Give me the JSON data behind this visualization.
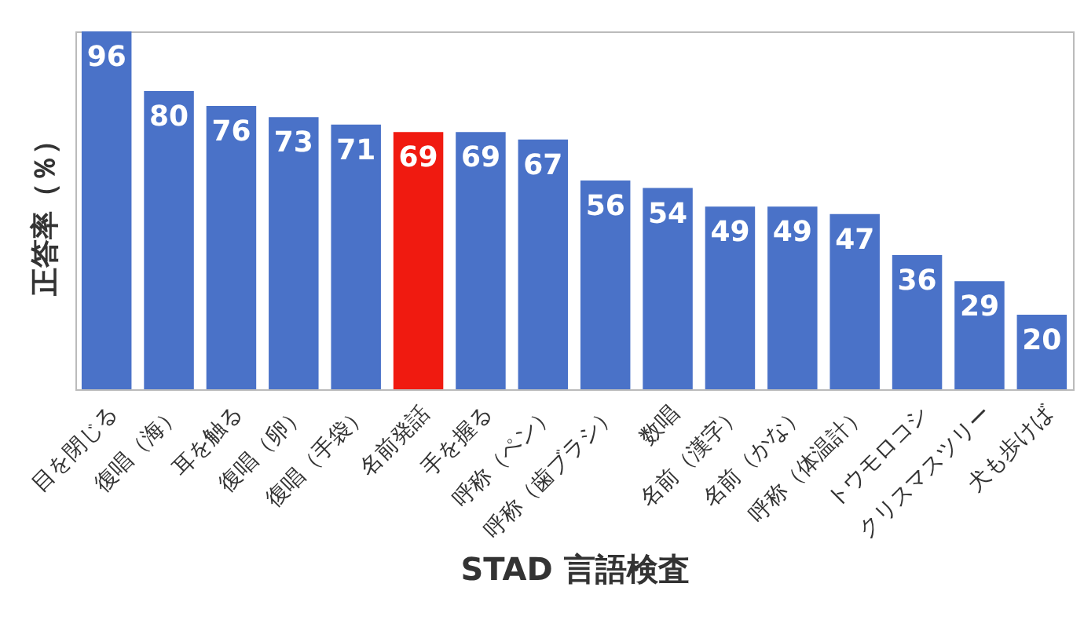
{
  "chart_data": {
    "type": "bar",
    "xlabel": "STAD 言語検査",
    "ylabel": "正答率（％）",
    "categories": [
      "目を閉じる",
      "復唱（海）",
      "耳を触る",
      "復唱（卵）",
      "復唱（手袋）",
      "名前発話",
      "手を握る",
      "呼称（ペン）",
      "呼称（歯ブラシ）",
      "数唱",
      "名前（漢字）",
      "名前（かな）",
      "呼称（体温計）",
      "トウモロコシ",
      "クリスマスツリー",
      "犬も歩けば"
    ],
    "values": [
      96,
      80,
      76,
      73,
      71,
      69,
      69,
      67,
      56,
      54,
      49,
      49,
      47,
      36,
      29,
      20
    ],
    "colors": [
      "#4a72c8",
      "#4a72c8",
      "#4a72c8",
      "#4a72c8",
      "#4a72c8",
      "#f01a10",
      "#4a72c8",
      "#4a72c8",
      "#4a72c8",
      "#4a72c8",
      "#4a72c8",
      "#4a72c8",
      "#4a72c8",
      "#4a72c8",
      "#4a72c8",
      "#4a72c8"
    ],
    "data_labels": true,
    "grid": false
  }
}
